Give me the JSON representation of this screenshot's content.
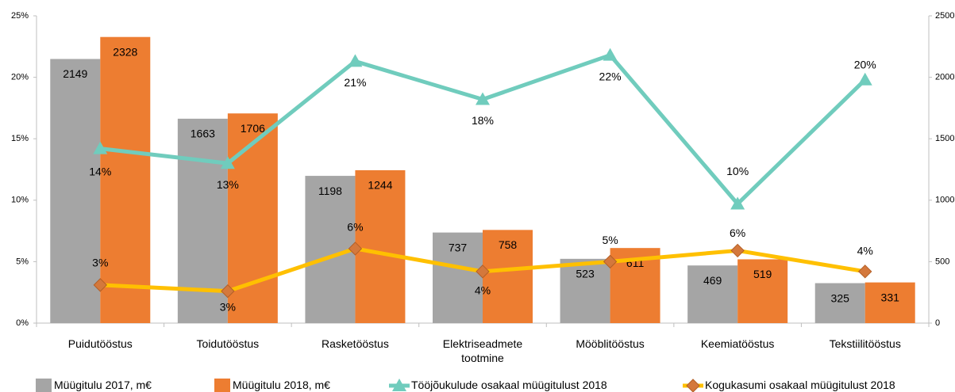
{
  "chart_data": {
    "type": "bar",
    "categories": [
      "Puidutööstus",
      "Toidutööstus",
      "Rasketööstus",
      "Elektriseadmete tootmine",
      "Mööblitööstus",
      "Keemiatööstus",
      "Tekstiilitööstus"
    ],
    "ylim": [
      0,
      25
    ],
    "yticks": [
      {
        "value": 0,
        "label": "0%"
      },
      {
        "value": 5,
        "label": "5%"
      },
      {
        "value": 10,
        "label": "10%"
      },
      {
        "value": 15,
        "label": "15%"
      },
      {
        "value": 20,
        "label": "20%"
      },
      {
        "value": 25,
        "label": "25%"
      }
    ],
    "y2lim": [
      0,
      2500
    ],
    "y2ticks": [
      0,
      500,
      1000,
      1500,
      2000,
      2500
    ],
    "legend": "bottom",
    "series": [
      {
        "name": "Müügitulu 2017, m€",
        "type": "bar",
        "axis": "y2",
        "color": "#a5a5a5",
        "values": [
          2149,
          1663,
          1198,
          737,
          523,
          469,
          325
        ]
      },
      {
        "name": "Müügitulu 2018, m€",
        "type": "bar",
        "axis": "y2",
        "color": "#ed7d31",
        "values": [
          2328,
          1706,
          1244,
          758,
          611,
          519,
          331
        ]
      },
      {
        "name": "Tööjõukulude osakaal müügitulust 2018",
        "type": "line",
        "color": "#70ccbd",
        "marker": "triangle",
        "values": [
          14.2,
          13.0,
          21.3,
          18.2,
          21.8,
          9.7,
          19.8
        ],
        "value_labels": [
          "14%",
          "13%",
          "21%",
          "18%",
          "22%",
          "10%",
          "20%"
        ]
      },
      {
        "name": "Kogukasumi osakaal müügitulust 2018",
        "type": "line",
        "color": "#ffc000",
        "marker": "diamond",
        "marker_color": "#d4783c",
        "values": [
          3.1,
          2.6,
          6.06,
          4.2,
          5.0,
          5.9,
          4.2
        ],
        "value_labels": [
          "3%",
          "3%",
          "6%",
          "4%",
          "5%",
          "6%",
          "4%"
        ]
      }
    ]
  }
}
